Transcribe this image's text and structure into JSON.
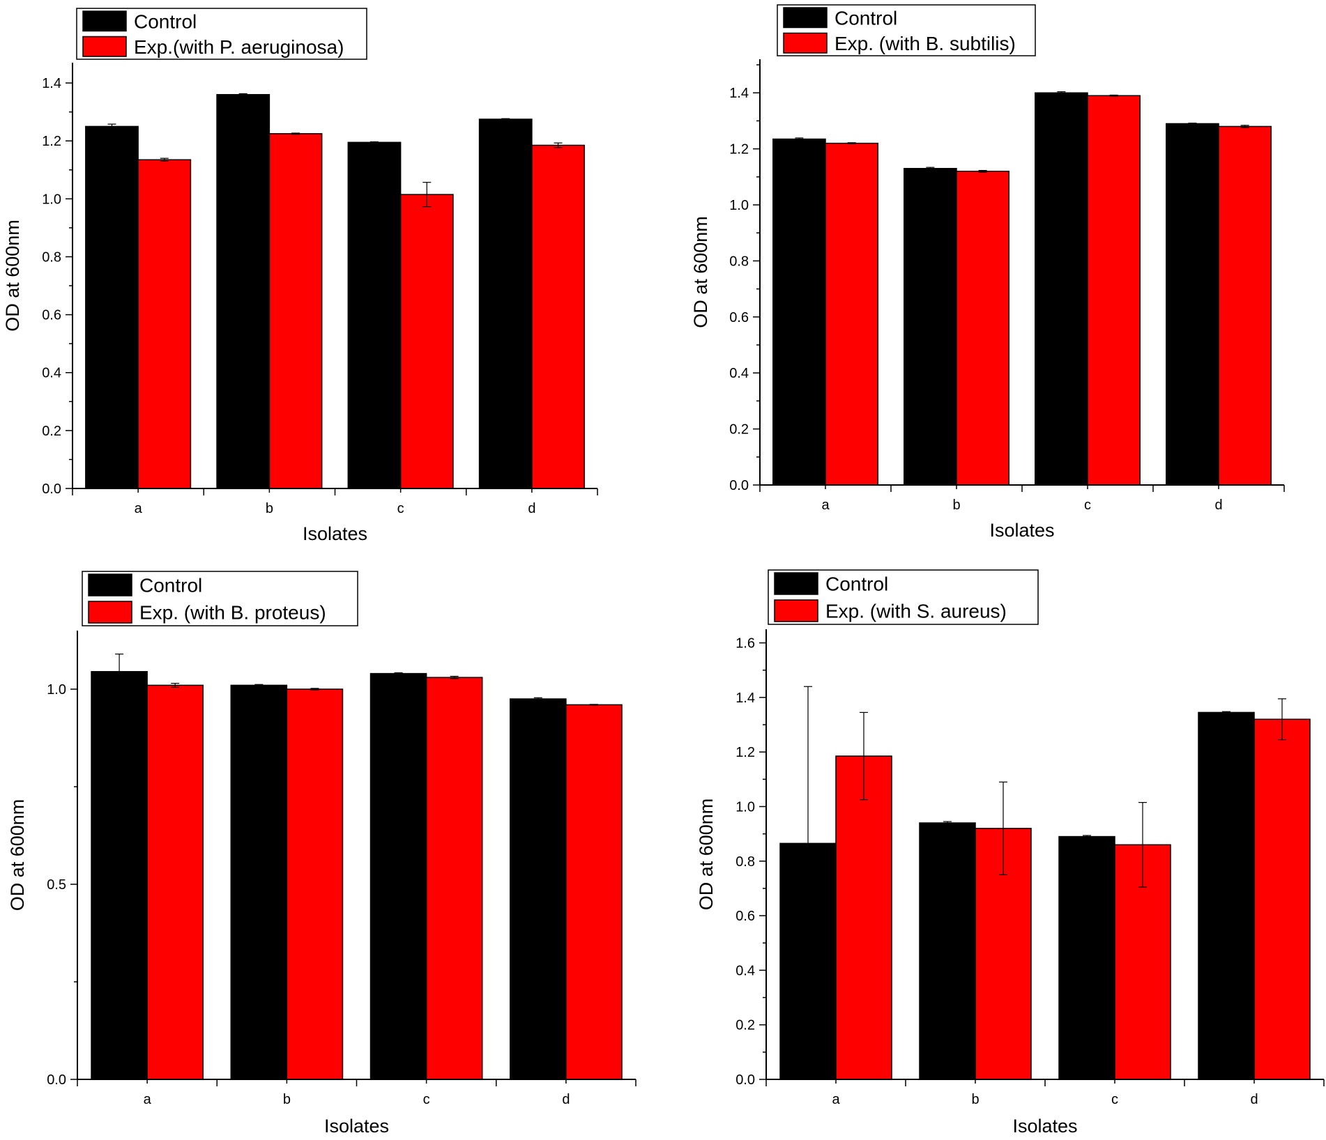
{
  "colors": {
    "control": "#000000",
    "experiment": "#ff0000",
    "axis": "#000000",
    "background": "#ffffff"
  },
  "chart_data": [
    {
      "type": "bar",
      "categories": [
        "a",
        "b",
        "c",
        "d"
      ],
      "series": [
        {
          "name": "Control",
          "values": [
            1.25,
            1.36,
            1.195,
            1.275
          ],
          "errors": [
            0.008,
            0.003,
            0.002,
            0.002
          ]
        },
        {
          "name": "Exp.(with P. aeruginosa)",
          "values": [
            1.135,
            1.225,
            1.015,
            1.185
          ],
          "errors": [
            0.005,
            0.002,
            0.042,
            0.008
          ]
        }
      ],
      "xlabel": "Isolates",
      "ylabel": "OD at 600nm",
      "ylim": [
        0,
        1.47
      ],
      "yticks": [
        0.0,
        0.2,
        0.4,
        0.6,
        0.8,
        1.0,
        1.2,
        1.4
      ],
      "ytick_labels": [
        "0.0",
        "0.2",
        "0.4",
        "0.6",
        "0.8",
        "1.0",
        "1.2",
        "1.4"
      ],
      "grid": false,
      "legend": "top-left"
    },
    {
      "type": "bar",
      "categories": [
        "a",
        "b",
        "c",
        "d"
      ],
      "series": [
        {
          "name": "Control",
          "values": [
            1.235,
            1.13,
            1.4,
            1.29
          ],
          "errors": [
            0.004,
            0.004,
            0.004,
            0.002
          ]
        },
        {
          "name": "Exp. (with B. subtilis)",
          "values": [
            1.22,
            1.12,
            1.39,
            1.28
          ],
          "errors": [
            0.002,
            0.003,
            0.002,
            0.004
          ]
        }
      ],
      "xlabel": "Isolates",
      "ylabel": "OD at 600nm",
      "ylim": [
        0,
        1.52
      ],
      "yticks": [
        0.0,
        0.2,
        0.4,
        0.6,
        0.8,
        1.0,
        1.2,
        1.4
      ],
      "ytick_labels": [
        "0.0",
        "0.2",
        "0.4",
        "0.6",
        "0.8",
        "1.0",
        "1.2",
        "1.4"
      ],
      "grid": false,
      "legend": "top-left"
    },
    {
      "type": "bar",
      "categories": [
        "a",
        "b",
        "c",
        "d"
      ],
      "series": [
        {
          "name": "Control",
          "values": [
            1.045,
            1.01,
            1.04,
            0.975
          ],
          "errors": [
            0.045,
            0.002,
            0.002,
            0.003
          ]
        },
        {
          "name": "Exp. (with B. proteus)",
          "values": [
            1.01,
            1.0,
            1.03,
            0.96
          ],
          "errors": [
            0.005,
            0.002,
            0.003,
            0.001
          ]
        }
      ],
      "xlabel": "Isolates",
      "ylabel": "OD at 600nm",
      "ylim": [
        0,
        1.15
      ],
      "yticks": [
        0.0,
        0.5,
        1.0
      ],
      "ytick_labels": [
        "0.0",
        "0.5",
        "1.0"
      ],
      "grid": false,
      "legend": "top-left"
    },
    {
      "type": "bar",
      "categories": [
        "a",
        "b",
        "c",
        "d"
      ],
      "series": [
        {
          "name": "Control",
          "values": [
            0.865,
            0.94,
            0.89,
            1.345
          ],
          "errors": [
            0.575,
            0.005,
            0.004,
            0.003
          ]
        },
        {
          "name": "Exp. (with S. aureus)",
          "values": [
            1.185,
            0.92,
            0.86,
            1.32
          ],
          "errors": [
            0.16,
            0.17,
            0.155,
            0.075
          ]
        }
      ],
      "xlabel": "Isolates",
      "ylabel": "OD at 600nm",
      "ylim": [
        0,
        1.65
      ],
      "yticks": [
        0.0,
        0.2,
        0.4,
        0.6,
        0.8,
        1.0,
        1.2,
        1.4,
        1.6
      ],
      "ytick_labels": [
        "0.0",
        "0.2",
        "0.4",
        "0.6",
        "0.8",
        "1.0",
        "1.2",
        "1.4",
        "1.6"
      ],
      "grid": false,
      "legend": "top-left"
    }
  ]
}
